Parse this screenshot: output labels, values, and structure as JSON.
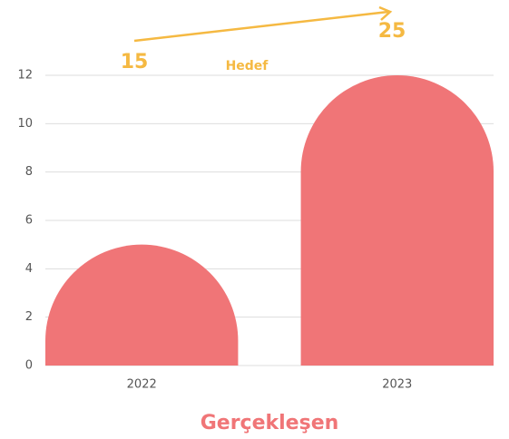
{
  "chart_data": {
    "type": "bar",
    "categories": [
      "2022",
      "2023"
    ],
    "values": [
      5,
      12
    ],
    "color": "#f07577",
    "ylim": [
      0,
      12
    ],
    "yticks": [
      0,
      2,
      4,
      6,
      8,
      10,
      12
    ],
    "grid": true,
    "x_label": "Gerçekleşen",
    "annotations": {
      "label": "Hedef",
      "start": "15",
      "end": "25",
      "color": "#f5b942"
    }
  }
}
